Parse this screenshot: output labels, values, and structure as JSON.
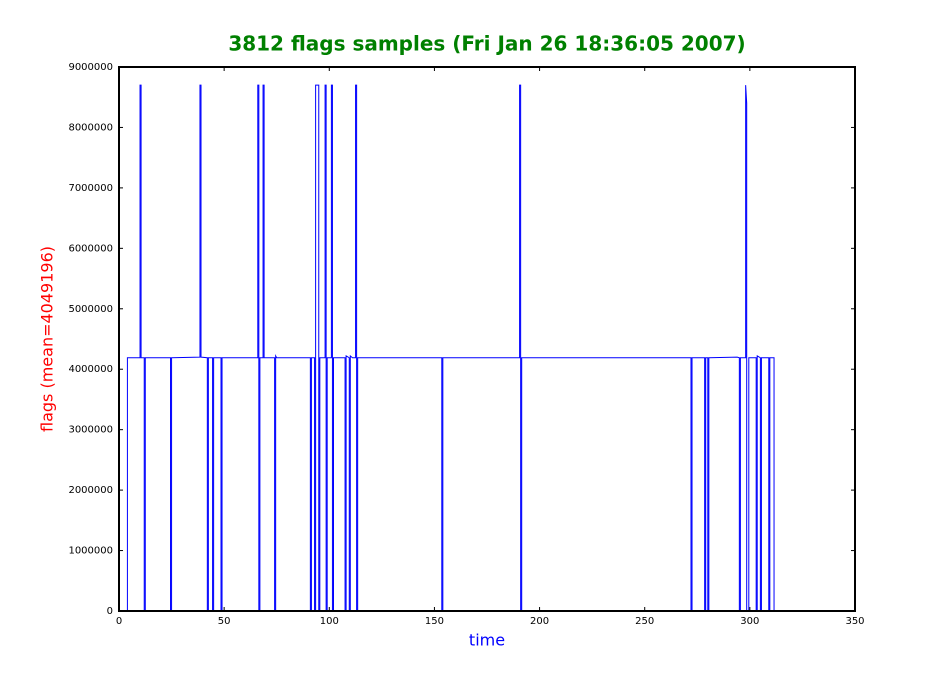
{
  "chart_data": {
    "type": "line",
    "title": "3812 flags samples (Fri Jan 26 18:36:05 2007)",
    "x_label": "time",
    "y_label": "flags (mean=4049196)",
    "color": "#0000ff",
    "xlim": [
      0,
      350
    ],
    "xticks": [
      0,
      50,
      100,
      150,
      200,
      250,
      300,
      350
    ],
    "ylim": [
      0,
      9000000
    ],
    "yticks": [
      0,
      1000000,
      2000000,
      3000000,
      4000000,
      5000000,
      6000000,
      7000000,
      8000000,
      9000000
    ],
    "x": [
      0,
      4,
      4,
      10,
      10,
      10.5,
      10.5,
      12,
      12,
      12.5,
      12.5,
      24.5,
      24.5,
      25,
      25,
      38.5,
      38.5,
      39,
      39,
      42,
      42,
      42.5,
      42.5,
      44.5,
      44.5,
      45,
      45,
      48.5,
      48.5,
      49,
      49,
      66,
      66,
      66.5,
      66.5,
      67,
      67,
      68.5,
      68.5,
      69,
      69,
      74,
      74,
      74.5,
      74.5,
      75,
      91,
      91,
      91.5,
      91.5,
      93,
      93,
      93.5,
      93.5,
      95,
      95,
      95.5,
      95.5,
      98,
      98,
      98.5,
      98.5,
      99,
      99,
      101,
      101,
      101.5,
      101.5,
      102,
      102,
      107.5,
      107.5,
      108,
      108,
      109.5,
      109.5,
      110,
      110,
      111,
      112.5,
      112.5,
      113,
      113,
      113.5,
      113.5,
      153.5,
      153.5,
      154,
      154,
      190.5,
      190.5,
      191,
      191,
      191.5,
      191.5,
      272,
      272,
      272.5,
      272.5,
      278.5,
      278.5,
      279,
      279,
      280,
      280,
      280.5,
      280.5,
      294,
      295,
      295,
      295.5,
      295.5,
      298,
      298,
      298.5,
      298.5,
      299.5,
      299.5,
      303,
      303,
      303.5,
      303.5,
      305,
      305,
      305.5,
      305.5,
      309,
      309,
      309.5,
      309.5,
      311.5,
      311.5,
      350
    ],
    "values": [
      0,
      0,
      4190000,
      4190000,
      8700000,
      8700000,
      4190000,
      4190000,
      0,
      0,
      4190000,
      4190000,
      0,
      0,
      4190000,
      4200000,
      8700000,
      8700000,
      4200000,
      4190000,
      0,
      0,
      4190000,
      4190000,
      0,
      0,
      4190000,
      4190000,
      0,
      0,
      4190000,
      4190000,
      8700000,
      8700000,
      0,
      0,
      4190000,
      4190000,
      8700000,
      8700000,
      4190000,
      4190000,
      0,
      0,
      4220000,
      4190000,
      4190000,
      0,
      0,
      4190000,
      4190000,
      0,
      0,
      8700000,
      8700000,
      0,
      0,
      4190000,
      4190000,
      8700000,
      8700000,
      0,
      0,
      4190000,
      4190000,
      8700000,
      8700000,
      0,
      0,
      4190000,
      4190000,
      0,
      0,
      4220000,
      4190000,
      0,
      0,
      4220000,
      4190000,
      4190000,
      8700000,
      8700000,
      0,
      0,
      4190000,
      4190000,
      0,
      0,
      4190000,
      4190000,
      8700000,
      8700000,
      0,
      0,
      4190000,
      4190000,
      0,
      0,
      4190000,
      4190000,
      0,
      0,
      4190000,
      4190000,
      0,
      0,
      4190000,
      4200000,
      4190000,
      0,
      0,
      4190000,
      4190000,
      8700000,
      8400000,
      0,
      0,
      4190000,
      4190000,
      0,
      0,
      4220000,
      4190000,
      0,
      0,
      4190000,
      4190000,
      0,
      0,
      4190000,
      4190000,
      0,
      0
    ]
  }
}
